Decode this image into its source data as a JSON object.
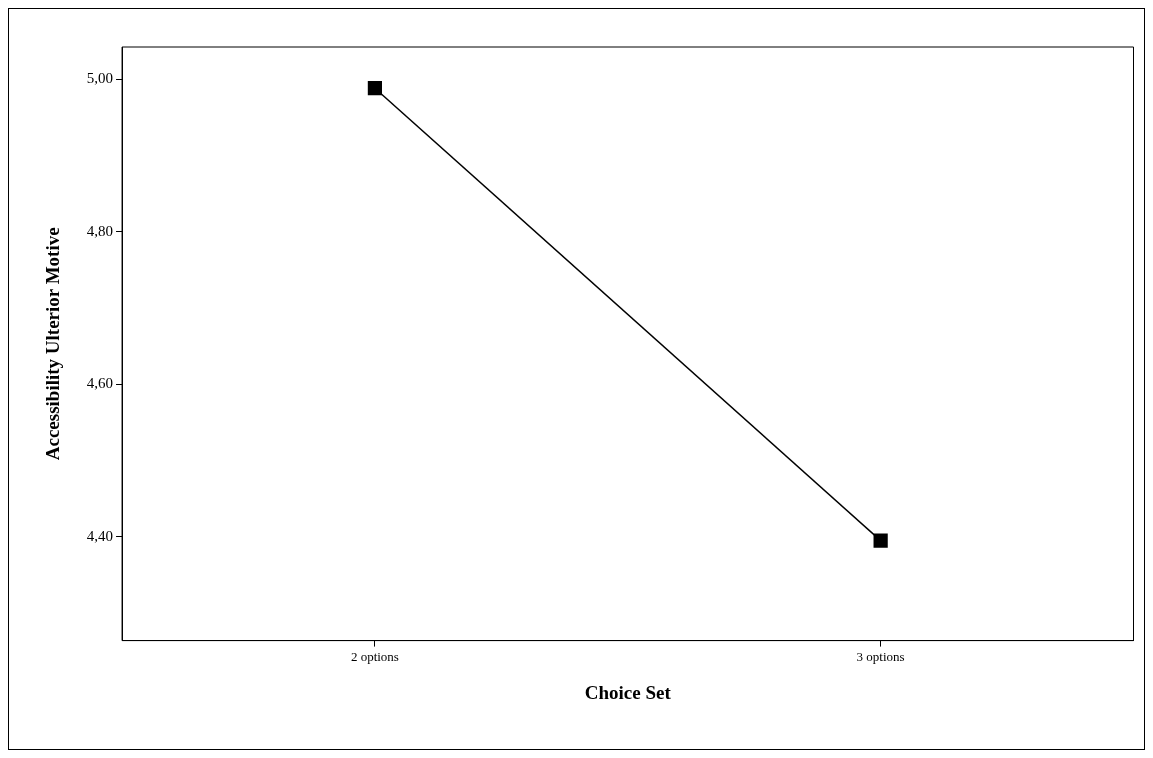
{
  "chart_data": {
    "type": "line",
    "xlabel": "Choice Set",
    "ylabel": "Accessibility Ulterior Motive",
    "categories": [
      "2 options",
      "3 options"
    ],
    "series": [
      {
        "color": "#000000",
        "values": [
          4.988,
          4.395
        ]
      }
    ],
    "ylim": [
      4.264,
      5.042
    ],
    "yticks": [
      {
        "value": 4.4,
        "label": "4,40"
      },
      {
        "value": 4.6,
        "label": "4,60"
      },
      {
        "value": 4.8,
        "label": "4,80"
      },
      {
        "value": 5,
        "label": "5,00"
      }
    ],
    "marker": "square",
    "line_style": "solid",
    "grid": false,
    "legend": false
  }
}
